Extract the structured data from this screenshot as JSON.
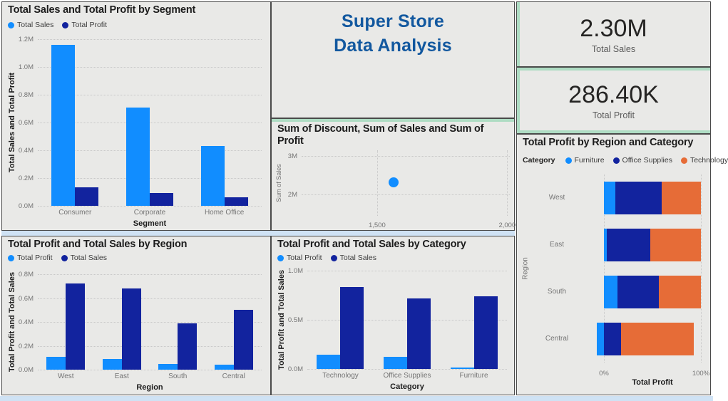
{
  "colors": {
    "light_blue": "#118DFF",
    "navy": "#12239E",
    "orange": "#E66C37",
    "panel_bg": "#e9e9e7",
    "border": "#4a4a4a",
    "mint": "#aedcc3",
    "pale_blue": "#cfe2f4",
    "title_blue": "#12589F"
  },
  "header": {
    "title_line1": "Super Store",
    "title_line2": "Data Analysis"
  },
  "kpis": [
    {
      "value": "2.30M",
      "label": "Total Sales"
    },
    {
      "value": "286.40K",
      "label": "Total Profit"
    }
  ],
  "chart_data": [
    {
      "id": "segment",
      "type": "bar",
      "title": "Total Sales and Total Profit by Segment",
      "categories": [
        "Consumer",
        "Corporate",
        "Home Office"
      ],
      "series": [
        {
          "name": "Total Sales",
          "color": "light_blue",
          "values": [
            1161000,
            706000,
            430000
          ]
        },
        {
          "name": "Total Profit",
          "color": "navy",
          "values": [
            134000,
            92000,
            60000
          ]
        }
      ],
      "xlabel": "Segment",
      "ylabel": "Total Sales and Total Profit",
      "ylim": [
        0,
        1200000
      ],
      "y_ticks": [
        {
          "label": "0.0M",
          "value": 0
        },
        {
          "label": "0.2M",
          "value": 200000
        },
        {
          "label": "0.4M",
          "value": 400000
        },
        {
          "label": "0.6M",
          "value": 600000
        },
        {
          "label": "0.8M",
          "value": 800000
        },
        {
          "label": "1.0M",
          "value": 1000000
        },
        {
          "label": "1.2M",
          "value": 1200000
        }
      ],
      "legend_position": "top",
      "grid": true
    },
    {
      "id": "discount_scatter",
      "type": "scatter",
      "title": "Sum of Discount, Sum of Sales and Sum of Profit",
      "xlabel": "",
      "ylabel": "Sum of Sales",
      "points": [
        {
          "x": 1563,
          "y": 2310000
        }
      ],
      "xlim": [
        1210,
        2010
      ],
      "ylim": [
        1450000,
        3150000
      ],
      "x_ticks": [
        {
          "label": "1,500",
          "value": 1500
        },
        {
          "label": "2,000",
          "value": 2000
        }
      ],
      "y_ticks": [
        {
          "label": "2M",
          "value": 2000000
        },
        {
          "label": "3M",
          "value": 3000000
        }
      ],
      "point_color": "light_blue",
      "grid": true
    },
    {
      "id": "region",
      "type": "bar",
      "title": "Total Profit and Total Sales by Region",
      "categories": [
        "West",
        "East",
        "South",
        "Central"
      ],
      "series": [
        {
          "name": "Total Profit",
          "color": "light_blue",
          "values": [
            108000,
            92000,
            47000,
            40000
          ]
        },
        {
          "name": "Total Sales",
          "color": "navy",
          "values": [
            725000,
            679000,
            391000,
            501000
          ]
        }
      ],
      "xlabel": "Region",
      "ylabel": "Total Profit and Total Sales",
      "ylim": [
        0,
        800000
      ],
      "y_ticks": [
        {
          "label": "0.0M",
          "value": 0
        },
        {
          "label": "0.2M",
          "value": 200000
        },
        {
          "label": "0.4M",
          "value": 400000
        },
        {
          "label": "0.6M",
          "value": 600000
        },
        {
          "label": "0.8M",
          "value": 800000
        }
      ],
      "legend_position": "top",
      "grid": true
    },
    {
      "id": "category",
      "type": "bar",
      "title": "Total Profit and Total Sales by Category",
      "categories": [
        "Technology",
        "Office Supplies",
        "Furniture"
      ],
      "series": [
        {
          "name": "Total Profit",
          "color": "light_blue",
          "values": [
            146000,
            122000,
            18000
          ]
        },
        {
          "name": "Total Sales",
          "color": "navy",
          "values": [
            836000,
            719000,
            742000
          ]
        }
      ],
      "xlabel": "Category",
      "ylabel": "Total Profit and Total Sales",
      "ylim": [
        0,
        1000000
      ],
      "y_ticks": [
        {
          "label": "0.0M",
          "value": 0
        },
        {
          "label": "0.5M",
          "value": 500000
        },
        {
          "label": "1.0M",
          "value": 1000000
        }
      ],
      "legend_position": "top",
      "grid": true
    },
    {
      "id": "stacked_region_category",
      "type": "stacked-bar-100",
      "title": "Total Profit by Region and Category",
      "legend_title": "Category",
      "legend_items": [
        {
          "name": "Furniture",
          "color": "light_blue"
        },
        {
          "name": "Office Supplies",
          "color": "navy"
        },
        {
          "name": "Technology",
          "color": "orange"
        }
      ],
      "xlabel": "Total Profit",
      "ylabel": "Region",
      "x_ticks": [
        {
          "label": "0%",
          "value": 0
        },
        {
          "label": "100%",
          "value": 100
        }
      ],
      "rows": [
        {
          "category": "West",
          "segments": [
            {
              "name": "Furniture",
              "color": "light_blue",
              "start": 0,
              "end": 11.6
            },
            {
              "name": "Office Supplies",
              "color": "navy",
              "start": 11.6,
              "end": 59.2
            },
            {
              "name": "Technology",
              "color": "orange",
              "start": 59.2,
              "end": 100
            }
          ]
        },
        {
          "category": "East",
          "segments": [
            {
              "name": "Furniture",
              "color": "light_blue",
              "start": 0,
              "end": 3
            },
            {
              "name": "Office Supplies",
              "color": "navy",
              "start": 3,
              "end": 48
            },
            {
              "name": "Technology",
              "color": "orange",
              "start": 48,
              "end": 100
            }
          ]
        },
        {
          "category": "South",
          "segments": [
            {
              "name": "Furniture",
              "color": "light_blue",
              "start": 0,
              "end": 14
            },
            {
              "name": "Office Supplies",
              "color": "navy",
              "start": 14,
              "end": 56.5
            },
            {
              "name": "Technology",
              "color": "orange",
              "start": 56.5,
              "end": 100
            }
          ]
        },
        {
          "category": "Central",
          "segments": [
            {
              "name": "Furniture",
              "color": "light_blue",
              "start": -7.5,
              "end": 0
            },
            {
              "name": "Office Supplies",
              "color": "navy",
              "start": 0,
              "end": 17.5
            },
            {
              "name": "Technology",
              "color": "orange",
              "start": 17.5,
              "end": 93
            }
          ]
        }
      ]
    }
  ]
}
